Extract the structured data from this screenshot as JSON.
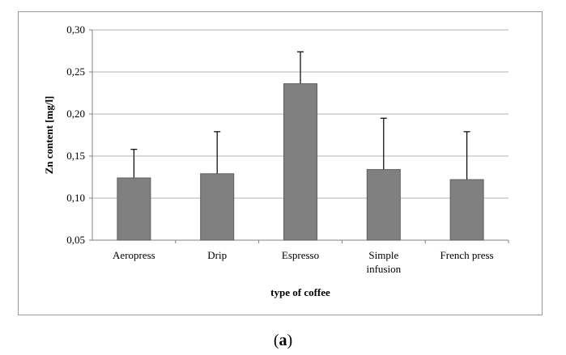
{
  "chart_data": {
    "type": "bar",
    "title": "",
    "xlabel": "type of coffee",
    "ylabel": "Zn content [mg/l]",
    "ylim": [
      0.05,
      0.3
    ],
    "ytick_values": [
      0.05,
      0.1,
      0.15,
      0.2,
      0.25,
      0.3
    ],
    "ytick_labels": [
      "0,05",
      "0,10",
      "0,15",
      "0,20",
      "0,25",
      "0,30"
    ],
    "grid": true,
    "legend": "none",
    "categories": [
      {
        "label": [
          "Aeropress"
        ],
        "value": 0.124,
        "error": 0.034
      },
      {
        "label": [
          "Drip"
        ],
        "value": 0.129,
        "error": 0.05
      },
      {
        "label": [
          "Espresso"
        ],
        "value": 0.236,
        "error": 0.038
      },
      {
        "label": [
          "Simple",
          "infusion"
        ],
        "value": 0.134,
        "error": 0.061
      },
      {
        "label": [
          "French press"
        ],
        "value": 0.122,
        "error": 0.057
      }
    ],
    "bar_color": "#808080",
    "bar_edge_color": "#5e5e5e",
    "grid_color": "#b3b3b3"
  },
  "caption": {
    "open": "(",
    "letter": "a",
    "close": ")"
  }
}
